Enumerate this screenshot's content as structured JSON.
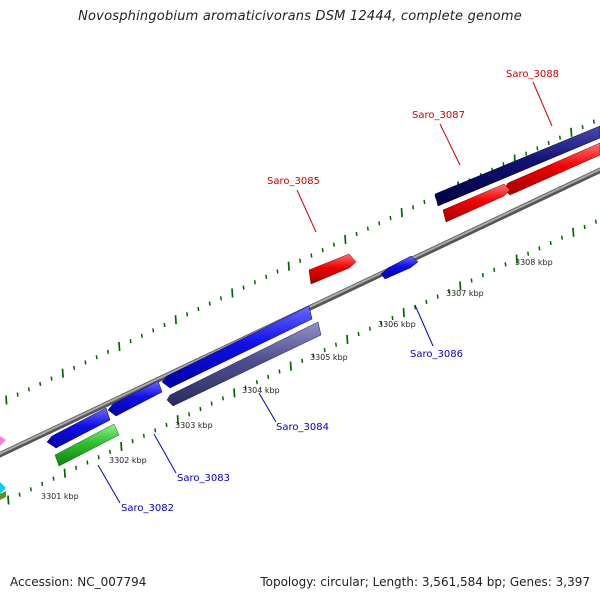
{
  "title": "Novosphingobium aromaticivorans DSM 12444, complete genome",
  "footer": {
    "accession_prefix": "Accession:",
    "accession": "NC_007794",
    "topology_prefix": "Topology:",
    "topology": "circular",
    "length_prefix": "Length:",
    "length": "3,561,584 bp",
    "genes_prefix": "Genes:",
    "genes": "3,397"
  },
  "colors": {
    "forward_strand": "#0000ee",
    "reverse_strand": "#cc0000",
    "backbone": "#888888",
    "tick": "#006600"
  },
  "ticks": [
    {
      "label": "3301 kbp"
    },
    {
      "label": "3302 kbp"
    },
    {
      "label": "3303 kbp"
    },
    {
      "label": "3304 kbp"
    },
    {
      "label": "3305 kbp"
    },
    {
      "label": "3306 kbp"
    },
    {
      "label": "3307 kbp"
    },
    {
      "label": "3308 kbp"
    }
  ],
  "genes": [
    {
      "name": "Saro_3082",
      "color": "#0000cc"
    },
    {
      "name": "Saro_3083",
      "color": "#0000cc"
    },
    {
      "name": "Saro_3084",
      "color": "#0000cc"
    },
    {
      "name": "Saro_3085",
      "color": "#cc0000"
    },
    {
      "name": "Saro_3086",
      "color": "#0000cc"
    },
    {
      "name": "Saro_3087",
      "color": "#cc0000"
    },
    {
      "name": "Saro_3088",
      "color": "#cc0000"
    }
  ]
}
